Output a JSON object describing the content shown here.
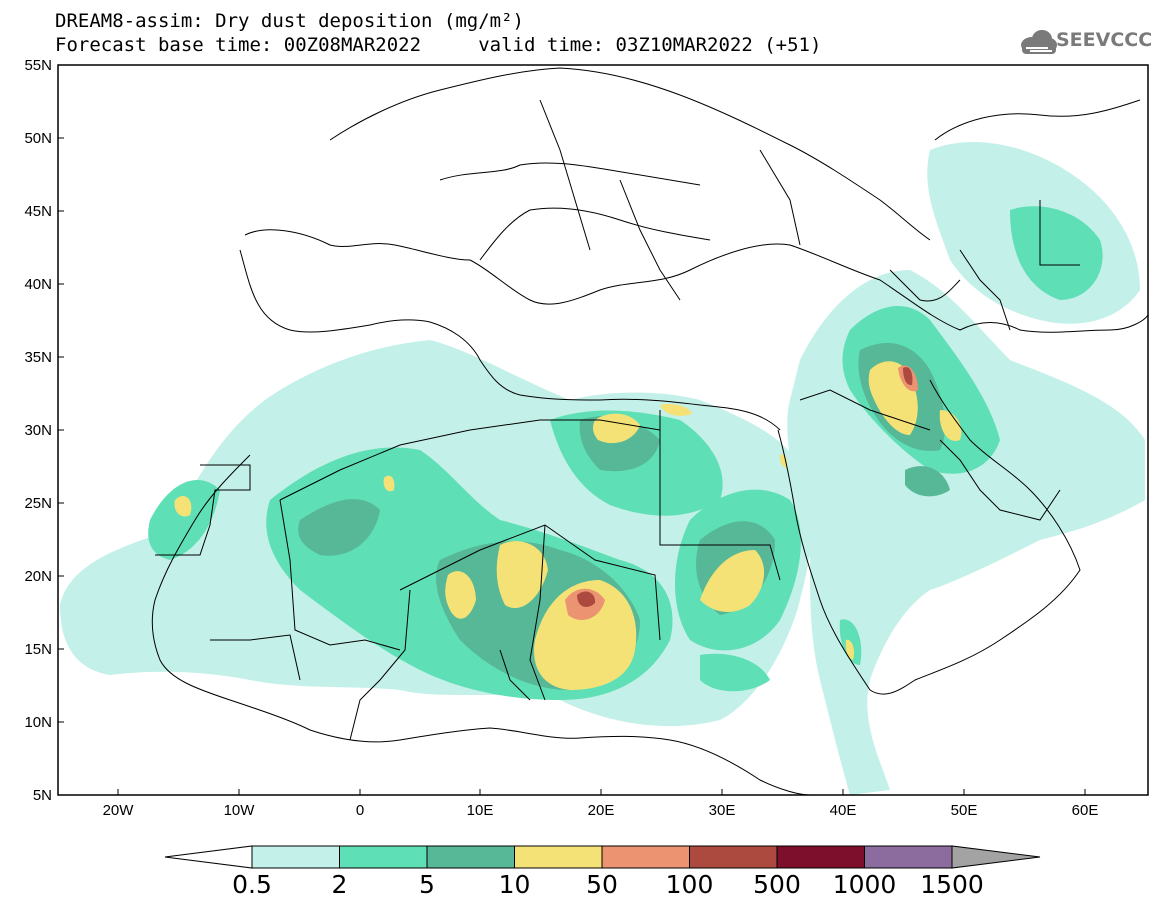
{
  "header": {
    "title_line1": "DREAM8-assim: Dry dust deposition (mg/m²)",
    "title_line2": "Forecast base time: 00Z08MAR2022     valid time: 03Z10MAR2022 (+51)",
    "logo_text": "SEEVCCC"
  },
  "map": {
    "lat_labels": [
      "55N",
      "50N",
      "45N",
      "40N",
      "35N",
      "30N",
      "25N",
      "20N",
      "15N",
      "10N",
      "5N"
    ],
    "lon_labels": [
      "20W",
      "10W",
      "0",
      "10E",
      "20E",
      "30E",
      "40E",
      "50E",
      "60E"
    ],
    "extent": {
      "lon": [
        -25,
        65
      ],
      "lat": [
        5,
        55
      ]
    }
  },
  "legend": {
    "thresholds": [
      "0.5",
      "2",
      "5",
      "10",
      "50",
      "100",
      "500",
      "1000",
      "1500"
    ],
    "colors": [
      "#c3f0e8",
      "#5fdfb5",
      "#56b896",
      "#f5e277",
      "#ec9472",
      "#ac4a40",
      "#7e0f2c",
      "#8c6b9e",
      "#a3a3a3"
    ],
    "under_color": "#ffffff"
  }
}
